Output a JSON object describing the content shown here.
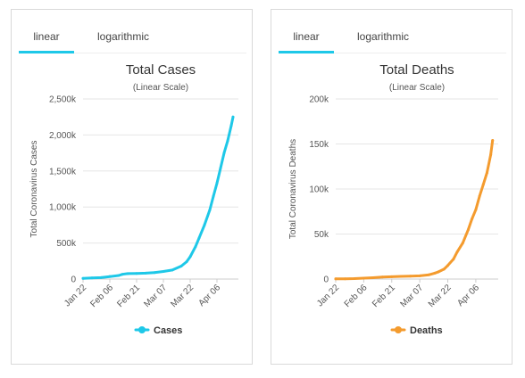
{
  "tabs": {
    "linear_label": "linear",
    "logarithmic_label": "logarithmic",
    "active_color": "#1ec8e8"
  },
  "chart_data": [
    {
      "id": "cases",
      "type": "line",
      "title": "Total Cases",
      "subtitle": "(Linear Scale)",
      "ylabel": "Total Coronavirus Cases",
      "xlabel": "",
      "x_ticks": [
        "Jan 22",
        "Feb 06",
        "Feb 21",
        "Mar 07",
        "Mar 22",
        "Apr 06"
      ],
      "y_ticks": [
        "0",
        "500k",
        "1,000k",
        "1,500k",
        "2,000k",
        "2,500k"
      ],
      "ylim": [
        0,
        2500000
      ],
      "grid": true,
      "legend_position": "bottom-center",
      "series": [
        {
          "name": "Cases",
          "color": "#1ec8e8",
          "x": [
            "Jan 22",
            "Jan 27",
            "Feb 01",
            "Feb 06",
            "Feb 11",
            "Feb 13",
            "Feb 16",
            "Feb 21",
            "Feb 26",
            "Mar 02",
            "Mar 07",
            "Mar 12",
            "Mar 17",
            "Mar 20",
            "Mar 22",
            "Mar 25",
            "Mar 27",
            "Mar 30",
            "Apr 02",
            "Apr 04",
            "Apr 06",
            "Apr 08",
            "Apr 10",
            "Apr 12",
            "Apr 14",
            "Apr 15"
          ],
          "values": [
            10000,
            15000,
            20000,
            35000,
            50000,
            65000,
            75000,
            78000,
            82000,
            90000,
            105000,
            125000,
            180000,
            240000,
            310000,
            450000,
            570000,
            750000,
            960000,
            1150000,
            1330000,
            1540000,
            1750000,
            1920000,
            2130000,
            2250000
          ]
        }
      ]
    },
    {
      "id": "deaths",
      "type": "line",
      "title": "Total Deaths",
      "subtitle": "(Linear Scale)",
      "ylabel": "Total Coronavirus Deaths",
      "xlabel": "",
      "x_ticks": [
        "Jan 22",
        "Feb 06",
        "Feb 21",
        "Mar 07",
        "Mar 22",
        "Apr 06"
      ],
      "y_ticks": [
        "0",
        "50k",
        "100k",
        "150k",
        "200k"
      ],
      "ylim": [
        0,
        200000
      ],
      "grid": true,
      "legend_position": "bottom-center",
      "series": [
        {
          "name": "Deaths",
          "color": "#f49b2e",
          "x": [
            "Jan 22",
            "Jan 27",
            "Feb 01",
            "Feb 06",
            "Feb 11",
            "Feb 16",
            "Feb 21",
            "Feb 26",
            "Mar 02",
            "Mar 07",
            "Mar 12",
            "Mar 15",
            "Mar 17",
            "Mar 20",
            "Mar 22",
            "Mar 25",
            "Mar 27",
            "Mar 30",
            "Apr 02",
            "Apr 04",
            "Apr 06",
            "Apr 08",
            "Apr 10",
            "Apr 12",
            "Apr 14",
            "Apr 15"
          ],
          "values": [
            200,
            300,
            500,
            1000,
            1500,
            2200,
            2600,
            3000,
            3200,
            3600,
            4800,
            6500,
            8000,
            11000,
            15000,
            22000,
            30000,
            40000,
            55000,
            67000,
            77000,
            92000,
            105000,
            118000,
            138000,
            154000
          ]
        }
      ]
    }
  ]
}
